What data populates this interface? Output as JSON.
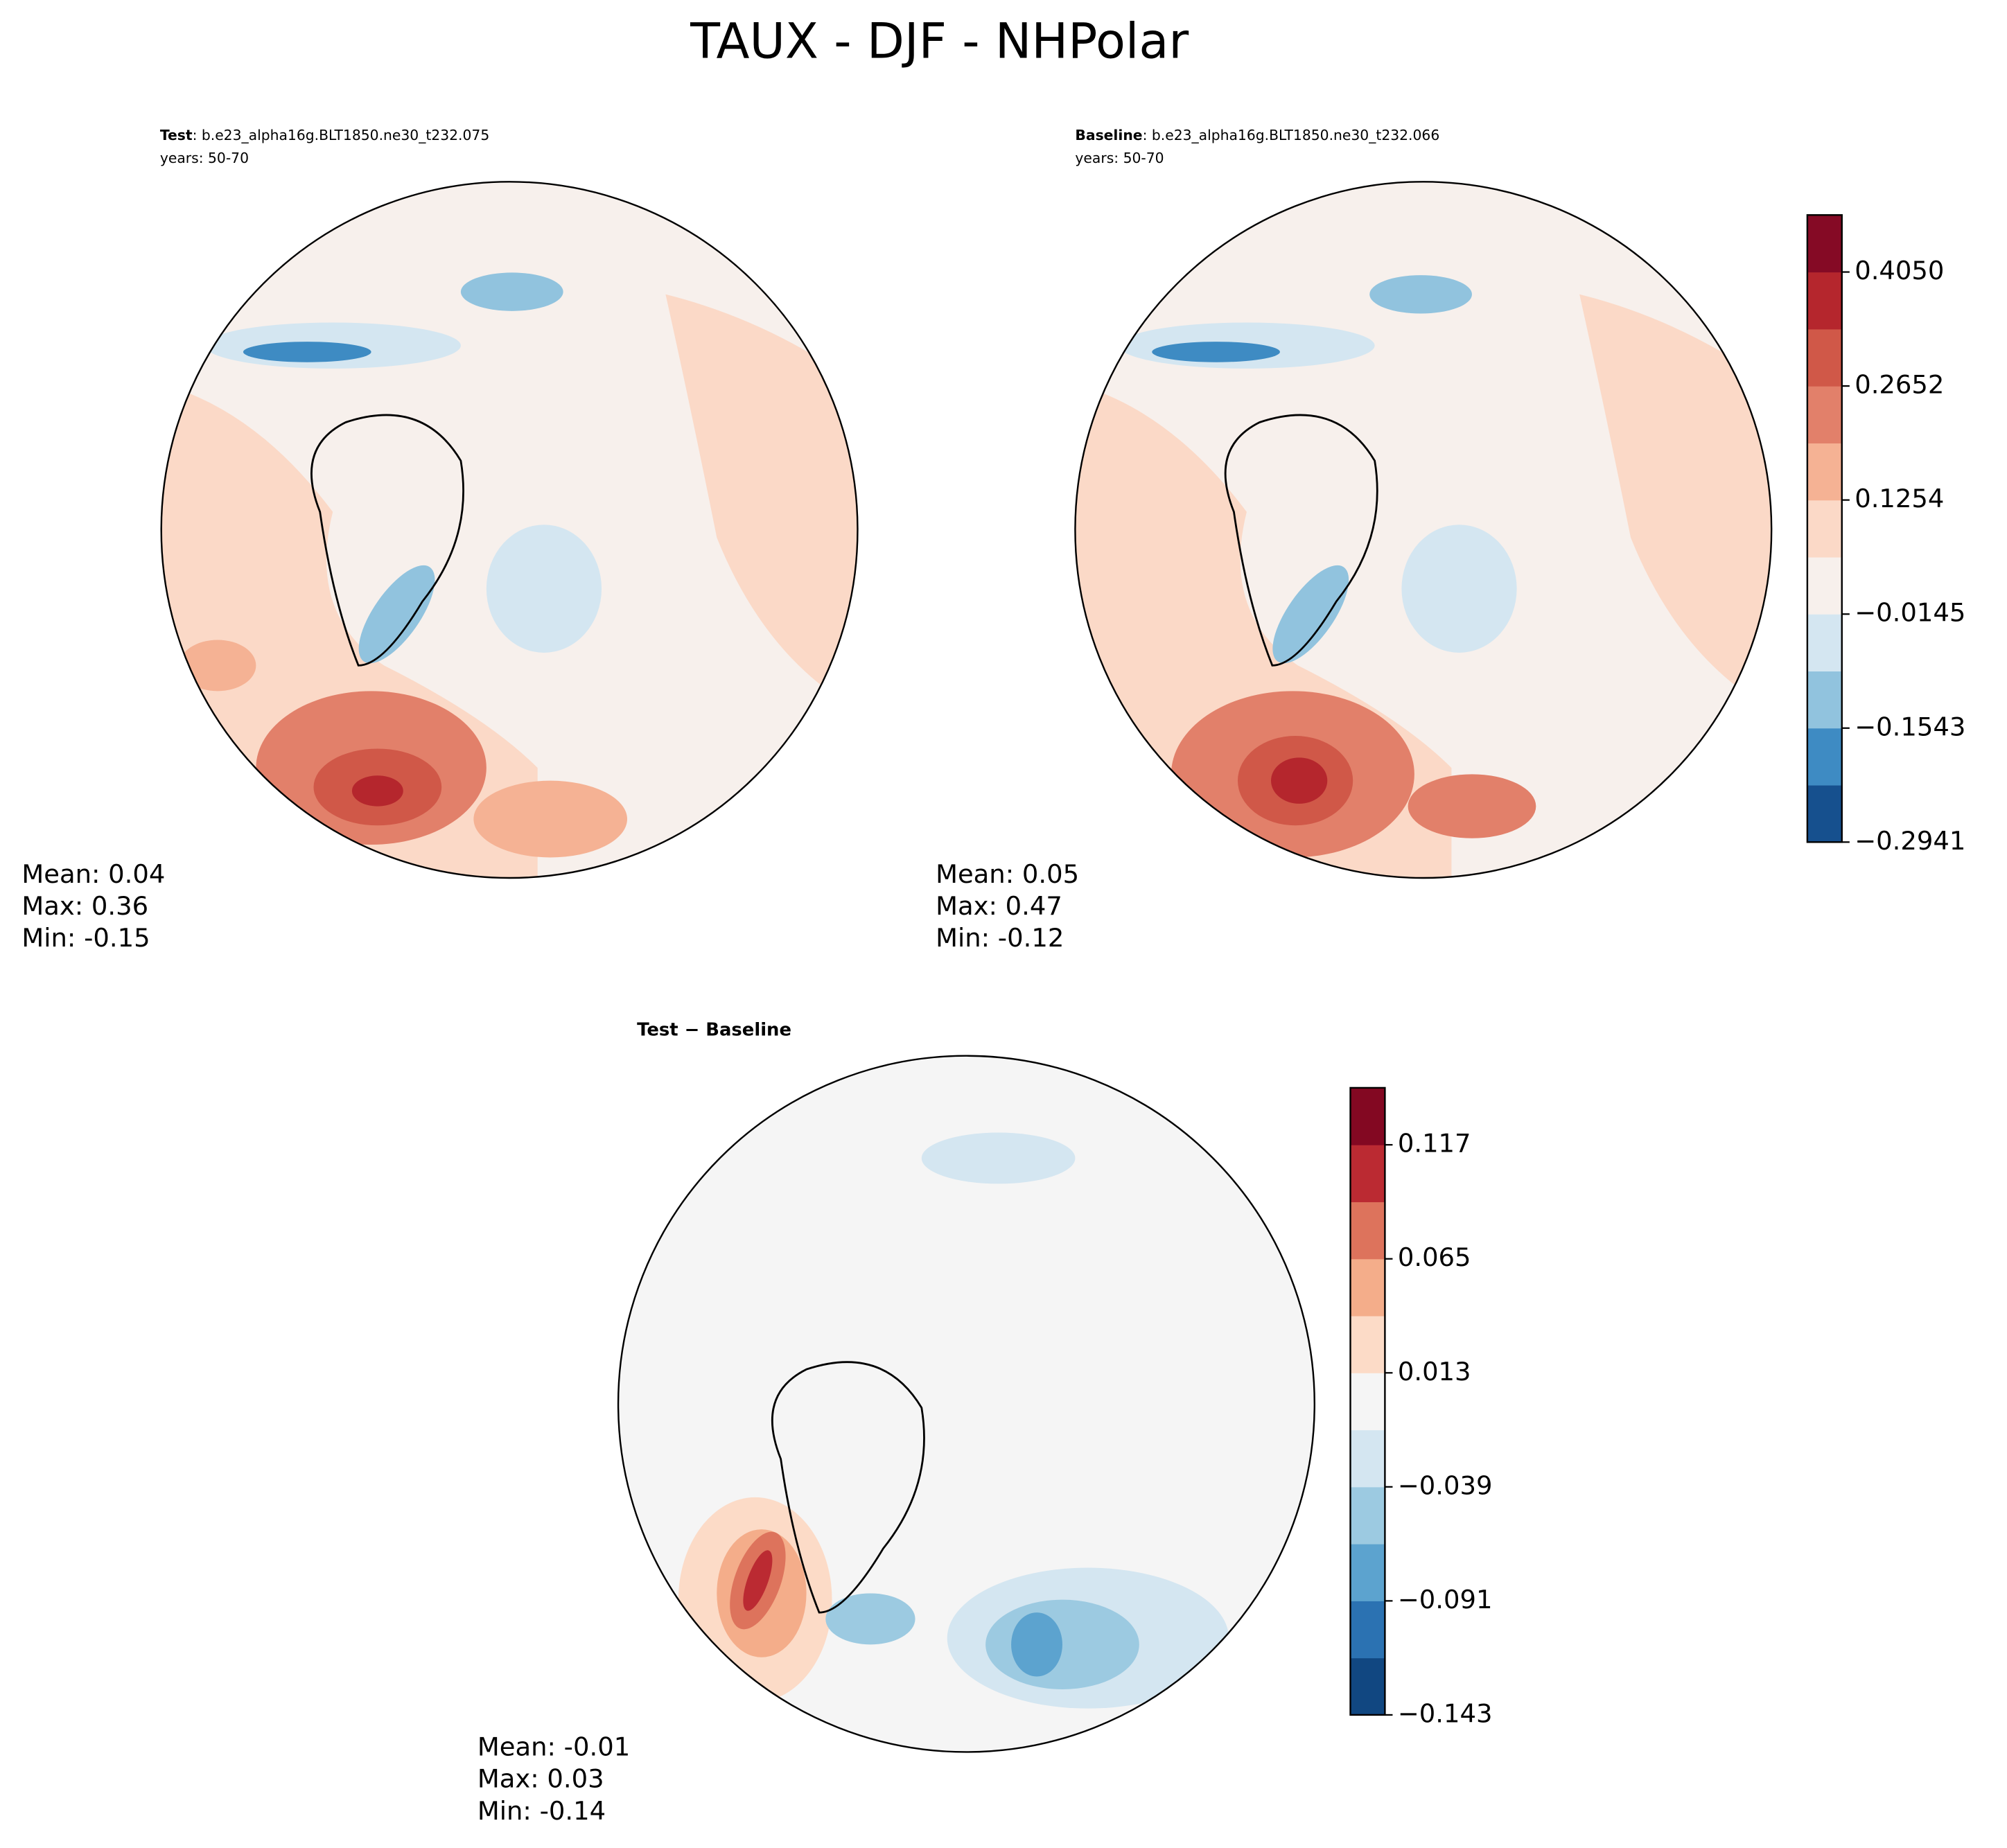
{
  "title": "TAUX - DJF - NHPolar",
  "chart_data": [
    {
      "type": "map",
      "title_bold": "Test",
      "title": ": b.e23_alpha16g.BLT1850.ne30_t232.075",
      "subtitle": "years: 50-70",
      "stats": [
        "Mean:  0.04",
        "Max:  0.36",
        "Min: -0.15"
      ]
    },
    {
      "type": "map",
      "title_bold": "Baseline",
      "title": ": b.e23_alpha16g.BLT1850.ne30_t232.066",
      "subtitle": "years: 50-70",
      "stats": [
        "Mean:  0.05",
        "Max:  0.47",
        "Min: -0.12"
      ],
      "colorbar": {
        "ylim": [
          -0.2941,
          0.4749
        ],
        "yticks": [
          {
            "value": -0.2941,
            "label": "−0.2941"
          },
          {
            "value": -0.1543,
            "label": "−0.1543"
          },
          {
            "value": -0.0145,
            "label": "−0.0145"
          },
          0.1254,
          0.2652,
          {
            "value": 0.405,
            "label": "0.4050"
          }
        ],
        "colors": [
          "#16508e",
          "#3e8bc3",
          "#91c3de",
          "#d4e6f1",
          "#f7f0ec",
          "#fbd9c7",
          "#f5b294",
          "#e2806a",
          "#d05848",
          "#b5262d",
          "#850a25"
        ]
      }
    },
    {
      "type": "map",
      "title_bold": "Test − Baseline",
      "stats": [
        "Mean: -0.01",
        "Max:  0.03",
        "Min: -0.14"
      ],
      "colorbar": {
        "ylim": [
          -0.143,
          0.143
        ],
        "yticks": [
          {
            "value": -0.143,
            "label": "−0.143"
          },
          {
            "value": -0.091,
            "label": "−0.091"
          },
          {
            "value": -0.039,
            "label": "−0.039"
          },
          0.013,
          0.065,
          0.117
        ],
        "colors": [
          "#114781",
          "#2b72b2",
          "#5ca3cf",
          "#9ccae1",
          "#d4e6f1",
          "#f5f5f5",
          "#fcdbc7",
          "#f4ad8a",
          "#dd735c",
          "#bb2a32",
          "#830822"
        ]
      }
    }
  ]
}
